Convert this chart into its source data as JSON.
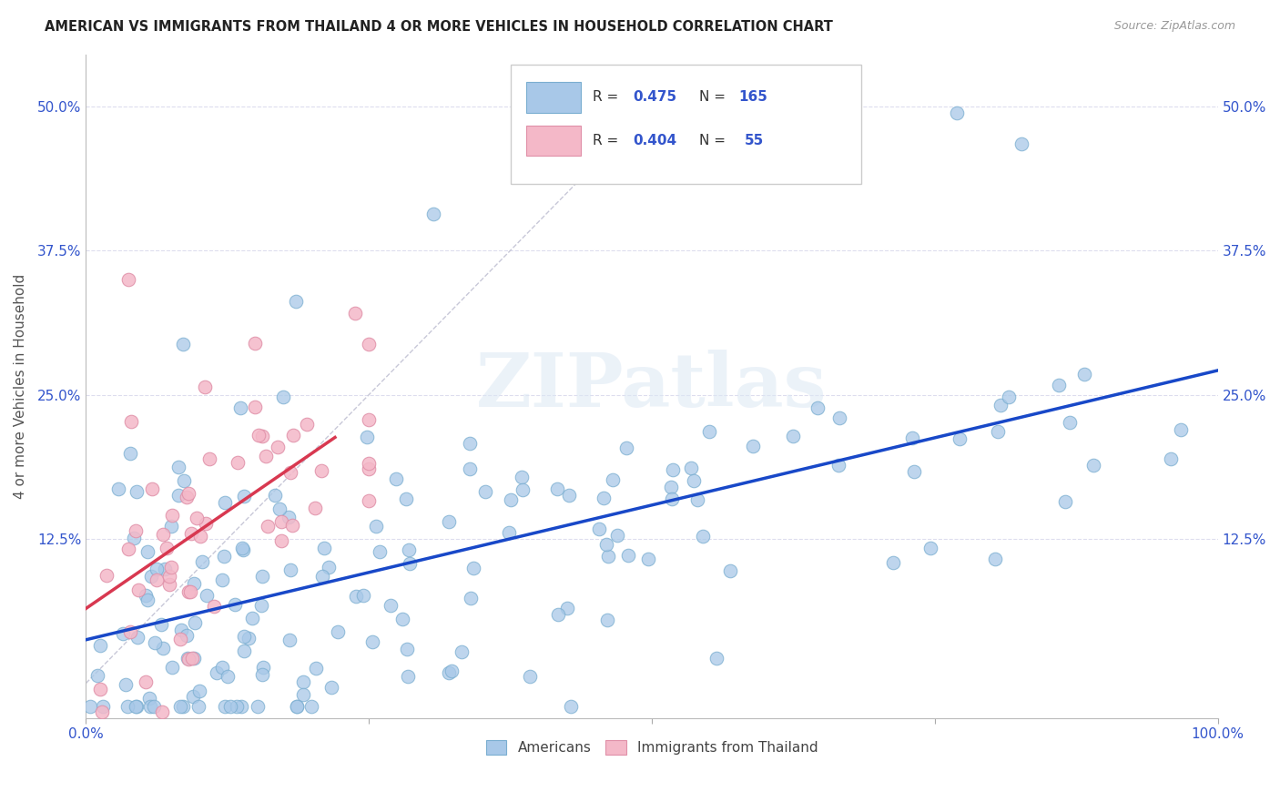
{
  "title": "AMERICAN VS IMMIGRANTS FROM THAILAND 4 OR MORE VEHICLES IN HOUSEHOLD CORRELATION CHART",
  "source": "Source: ZipAtlas.com",
  "ylabel": "4 or more Vehicles in Household",
  "xlim": [
    0,
    1.0
  ],
  "ylim": [
    -0.03,
    0.545
  ],
  "ytick_positions": [
    0,
    0.125,
    0.25,
    0.375,
    0.5
  ],
  "blue_color": "#a8c8e8",
  "blue_edge": "#7aaed0",
  "pink_color": "#f4b8c8",
  "pink_edge": "#e090a8",
  "line_blue": "#1848c8",
  "line_pink": "#d83850",
  "diag_color": "#c8c8d8",
  "watermark": "ZIPatlas",
  "legend_blue_R": "0.475",
  "legend_blue_N": "165",
  "legend_pink_R": "0.404",
  "legend_pink_N": "55"
}
